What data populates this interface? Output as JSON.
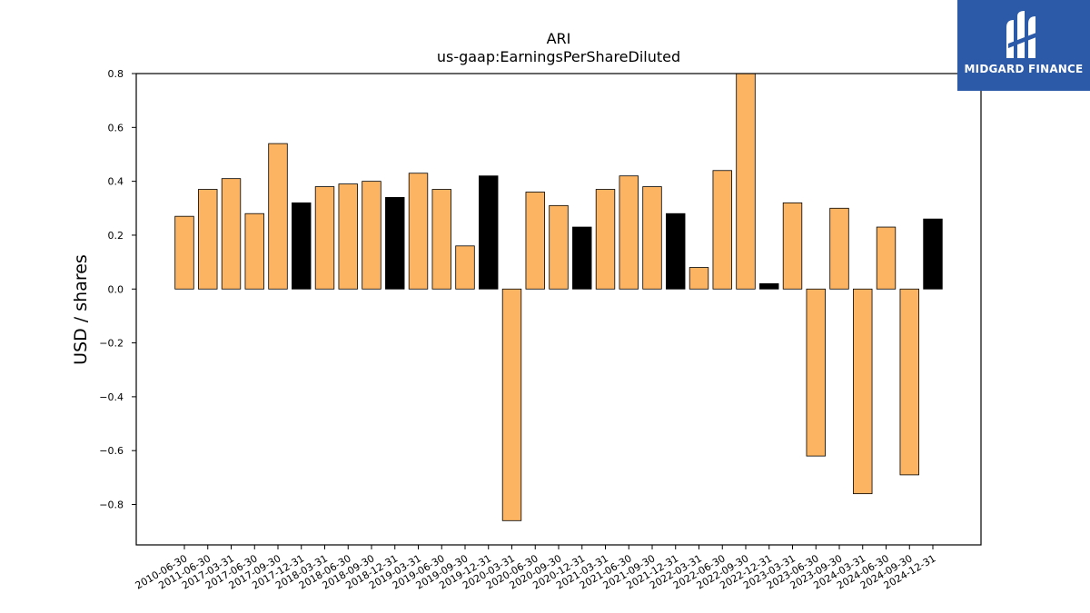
{
  "chart_data": {
    "type": "bar",
    "title": "ARI",
    "subtitle": "us-gaap:EarningsPerShareDiluted",
    "xlabel": "",
    "ylabel": "USD / shares",
    "ylim": [
      -0.95,
      0.8
    ],
    "yticks": [
      0.8,
      0.6,
      0.4,
      0.2,
      0.0,
      -0.2,
      -0.4,
      -0.6,
      -0.8
    ],
    "ytick_labels": [
      "0.8",
      "0.6",
      "0.4",
      "0.2",
      "0.0",
      "−0.2",
      "−0.4",
      "−0.6",
      "−0.8"
    ],
    "colors": {
      "default": "#fdb462",
      "highlight": "#000000",
      "edge": "#000000"
    },
    "categories": [
      "2010-06-30",
      "2011-06-30",
      "2017-03-31",
      "2017-06-30",
      "2017-09-30",
      "2017-12-31",
      "2018-03-31",
      "2018-06-30",
      "2018-09-30",
      "2018-12-31",
      "2019-03-31",
      "2019-06-30",
      "2019-09-30",
      "2019-12-31",
      "2020-03-31",
      "2020-06-30",
      "2020-09-30",
      "2020-12-31",
      "2021-03-31",
      "2021-06-30",
      "2021-09-30",
      "2021-12-31",
      "2022-03-31",
      "2022-06-30",
      "2022-09-30",
      "2022-12-31",
      "2023-03-31",
      "2023-06-30",
      "2023-09-30",
      "2024-03-31",
      "2024-06-30",
      "2024-09-30",
      "2024-12-31"
    ],
    "values": [
      0.27,
      0.37,
      0.41,
      0.28,
      0.54,
      0.32,
      0.38,
      0.39,
      0.4,
      0.34,
      0.43,
      0.37,
      0.16,
      0.42,
      -0.86,
      0.36,
      0.31,
      0.23,
      0.37,
      0.42,
      0.38,
      0.28,
      0.08,
      0.44,
      0.8,
      0.02,
      0.32,
      -0.62,
      0.3,
      -0.76,
      0.23,
      -0.69,
      0.26
    ],
    "highlight": [
      false,
      false,
      false,
      false,
      false,
      true,
      false,
      false,
      false,
      true,
      false,
      false,
      false,
      true,
      false,
      false,
      false,
      true,
      false,
      false,
      false,
      true,
      false,
      false,
      false,
      true,
      false,
      false,
      false,
      false,
      false,
      false,
      true
    ]
  },
  "logo": {
    "text": "MIDGARD FINANCE",
    "icon": "midgard-logo-icon"
  }
}
